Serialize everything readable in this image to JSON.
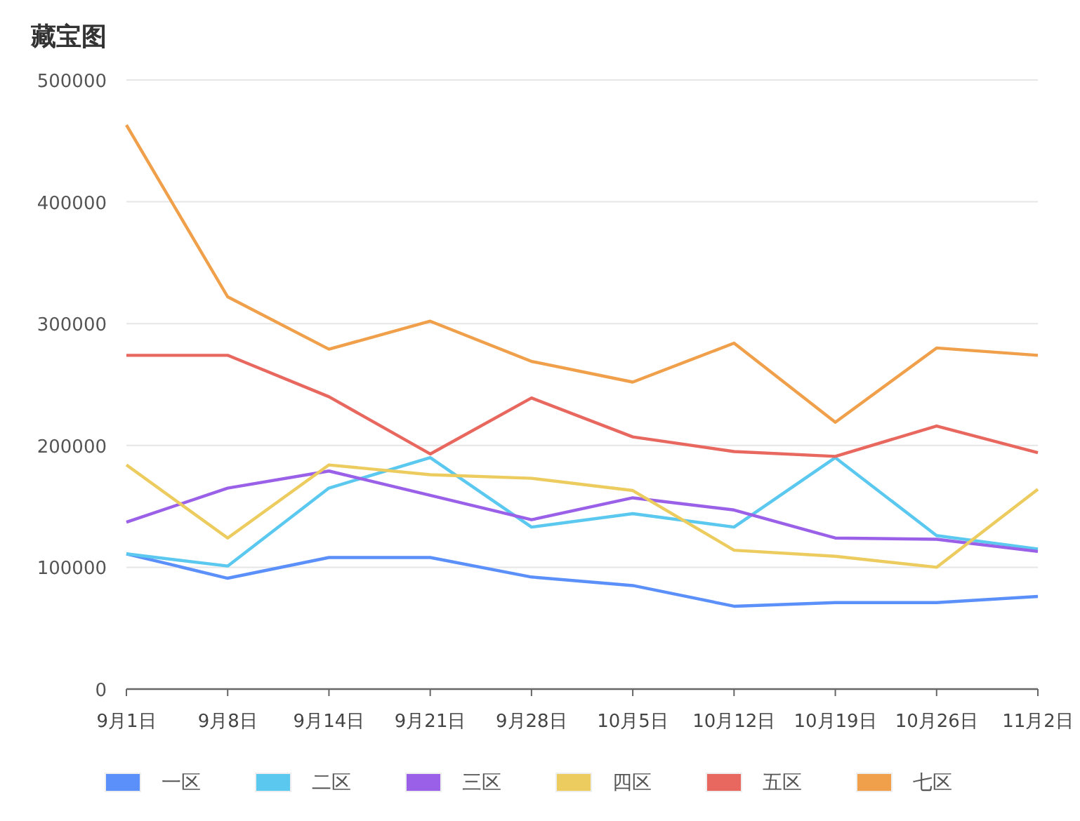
{
  "chart_data": {
    "type": "line",
    "title": "藏宝图",
    "categories": [
      "9月1日",
      "9月8日",
      "9月14日",
      "9月21日",
      "9月28日",
      "10月5日",
      "10月12日",
      "10月19日",
      "10月26日",
      "11月2日"
    ],
    "ylim": [
      0,
      500000
    ],
    "yticks": [
      0,
      100000,
      200000,
      300000,
      400000,
      500000
    ],
    "grid": "y",
    "legend": "bottom",
    "marker": "none",
    "line_style": "solid",
    "series": [
      {
        "name": "一区",
        "color": "#5b8ff9",
        "values": [
          111000,
          91000,
          108000,
          108000,
          92000,
          85000,
          68000,
          71000,
          71000,
          76000
        ]
      },
      {
        "name": "二区",
        "color": "#5ac8ef",
        "values": [
          111000,
          101000,
          165000,
          190000,
          133000,
          144000,
          133000,
          190000,
          126000,
          115000
        ]
      },
      {
        "name": "三区",
        "color": "#9a60e8",
        "values": [
          137000,
          165000,
          179000,
          159000,
          139000,
          157000,
          147000,
          124000,
          123000,
          113000
        ]
      },
      {
        "name": "四区",
        "color": "#edcc5f",
        "values": [
          184000,
          124000,
          184000,
          176000,
          173000,
          163000,
          114000,
          109000,
          100000,
          164000
        ]
      },
      {
        "name": "五区",
        "color": "#e8685f",
        "values": [
          274000,
          274000,
          240000,
          193000,
          239000,
          207000,
          195000,
          191000,
          216000,
          194000
        ]
      },
      {
        "name": "七区",
        "color": "#f0a04b",
        "values": [
          463000,
          322000,
          279000,
          302000,
          269000,
          252000,
          284000,
          219000,
          280000,
          274000
        ]
      }
    ]
  }
}
